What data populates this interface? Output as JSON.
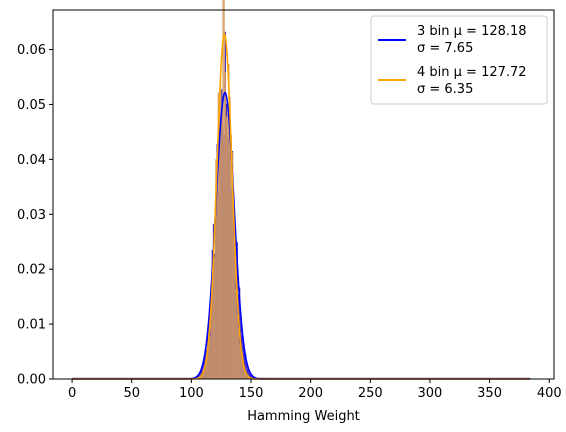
{
  "chart_data": {
    "type": "histogram",
    "xlabel": "Hamming Weight",
    "ylabel": "",
    "xlim": [
      -16,
      404
    ],
    "ylim": [
      0,
      0.0672
    ],
    "xticks": [
      0,
      50,
      100,
      150,
      200,
      250,
      300,
      350,
      400
    ],
    "yticks": [
      0.0,
      0.01,
      0.02,
      0.03,
      0.04,
      0.05,
      0.06
    ],
    "ytick_labels": [
      "0.00",
      "0.01",
      "0.02",
      "0.03",
      "0.04",
      "0.05",
      "0.06"
    ],
    "legend_placement": "top-right",
    "grid": false,
    "x_range": [
      0,
      384
    ],
    "series": [
      {
        "name": "3 bin",
        "legend_line1": "3 bin μ = 128.18",
        "legend_line2": "σ = 7.65",
        "color": "#0000ff",
        "hist_color": "#3b1fb8",
        "mu": 128.18,
        "sigma": 7.65
      },
      {
        "name": "4 bin",
        "legend_line1": "4 bin μ = 127.72",
        "legend_line2": "σ = 6.35",
        "color": "#ffa500",
        "hist_color": "#d49a5e",
        "mu": 127.72,
        "sigma": 6.35
      }
    ]
  }
}
